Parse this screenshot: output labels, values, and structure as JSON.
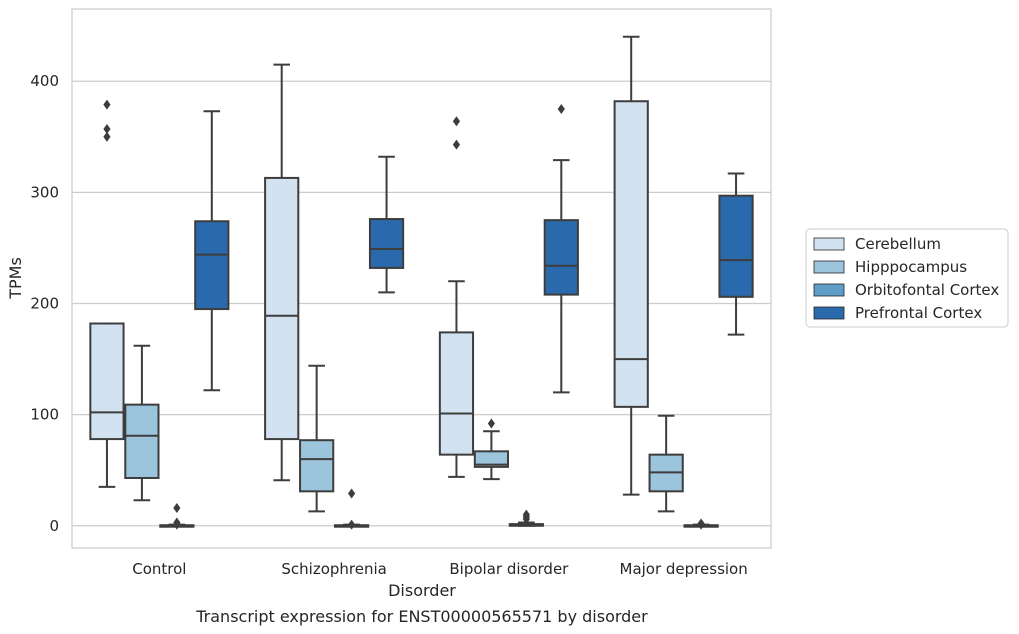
{
  "chart_data": {
    "type": "box",
    "caption": "Transcript expression for ENST00000565571 by disorder",
    "xlabel": "Disorder",
    "ylabel": "TPMs",
    "ylim": [
      -20,
      465
    ],
    "yticks": [
      0,
      100,
      200,
      300,
      400
    ],
    "grid": "horizontal",
    "legend_placement": "right",
    "categories": [
      "Control",
      "Schizophrenia",
      "Bipolar disorder",
      "Major depression"
    ],
    "series": [
      {
        "name": "Cerebellum",
        "color": "#d3e2f0",
        "boxes": [
          {
            "low": 35,
            "q1": 78,
            "median": 102,
            "q3": 182,
            "high": 182,
            "outliers": [
              350,
              357,
              379
            ]
          },
          {
            "low": 41,
            "q1": 78,
            "median": 189,
            "q3": 313,
            "high": 415,
            "outliers": []
          },
          {
            "low": 44,
            "q1": 64,
            "median": 101,
            "q3": 174,
            "high": 220,
            "outliers": [
              343,
              364
            ]
          },
          {
            "low": 28,
            "q1": 107,
            "median": 150,
            "q3": 382,
            "high": 440,
            "outliers": []
          }
        ]
      },
      {
        "name": "Hipppocampus",
        "color": "#9cc4dc",
        "boxes": [
          {
            "low": 23,
            "q1": 43,
            "median": 81,
            "q3": 109,
            "high": 162,
            "outliers": []
          },
          {
            "low": 13,
            "q1": 31,
            "median": 60,
            "q3": 77,
            "high": 144,
            "outliers": []
          },
          {
            "low": 42,
            "q1": 53,
            "median": 55,
            "q3": 67,
            "high": 85,
            "outliers": [
              92
            ]
          },
          {
            "low": 13,
            "q1": 31,
            "median": 48,
            "q3": 64,
            "high": 99,
            "outliers": []
          }
        ]
      },
      {
        "name": "Orbitofontal Cortex",
        "color": "#5e9dc7",
        "boxes": [
          {
            "low": 0,
            "q1": 0,
            "median": 0,
            "q3": 0.5,
            "high": 1,
            "outliers": [
              1,
              3,
              16
            ]
          },
          {
            "low": 0,
            "q1": 0,
            "median": 0,
            "q3": 0.5,
            "high": 1,
            "outliers": [
              1,
              29
            ]
          },
          {
            "low": 0,
            "q1": 0,
            "median": 0.5,
            "q3": 1.5,
            "high": 3,
            "outliers": [
              6,
              8,
              10
            ]
          },
          {
            "low": 0,
            "q1": 0,
            "median": 0,
            "q3": 0.5,
            "high": 1,
            "outliers": [
              1,
              2
            ]
          }
        ]
      },
      {
        "name": "Prefrontal Cortex",
        "color": "#2a69ab",
        "boxes": [
          {
            "low": 122,
            "q1": 195,
            "median": 244,
            "q3": 274,
            "high": 373,
            "outliers": []
          },
          {
            "low": 210,
            "q1": 232,
            "median": 249,
            "q3": 276,
            "high": 332,
            "outliers": []
          },
          {
            "low": 120,
            "q1": 208,
            "median": 234,
            "q3": 275,
            "high": 329,
            "outliers": [
              375
            ]
          },
          {
            "low": 172,
            "q1": 206,
            "median": 239,
            "q3": 297,
            "high": 317,
            "outliers": []
          }
        ]
      }
    ]
  }
}
